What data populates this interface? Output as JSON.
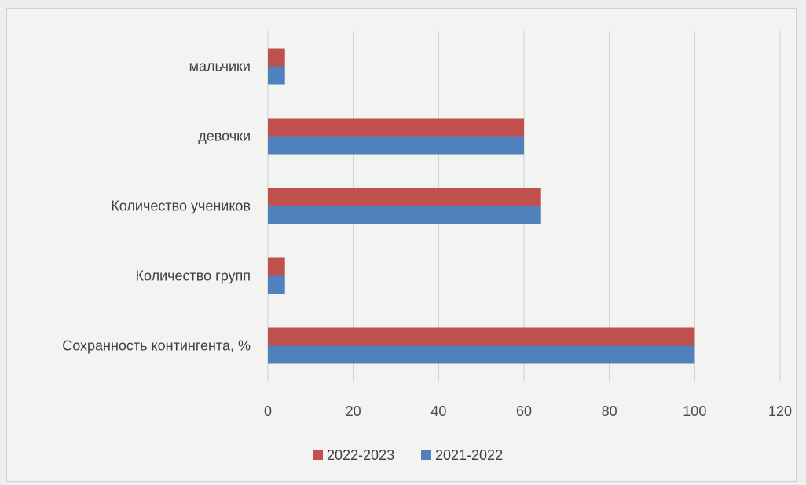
{
  "chart_data": {
    "type": "bar",
    "orientation": "horizontal",
    "categories": [
      "Сохранность контингента, %",
      "Количество групп",
      "Количество учеников",
      "девочки",
      "мальчики"
    ],
    "series": [
      {
        "name": "2022-2023",
        "color": "#c0504d",
        "values": [
          100,
          4,
          64,
          60,
          4
        ]
      },
      {
        "name": "2021-2022",
        "color": "#4f81bd",
        "values": [
          100,
          4,
          64,
          60,
          4
        ]
      }
    ],
    "xlim": [
      0,
      120
    ],
    "xticks": [
      0,
      20,
      40,
      60,
      80,
      100,
      120
    ],
    "grid": true,
    "legend_position": "bottom"
  }
}
